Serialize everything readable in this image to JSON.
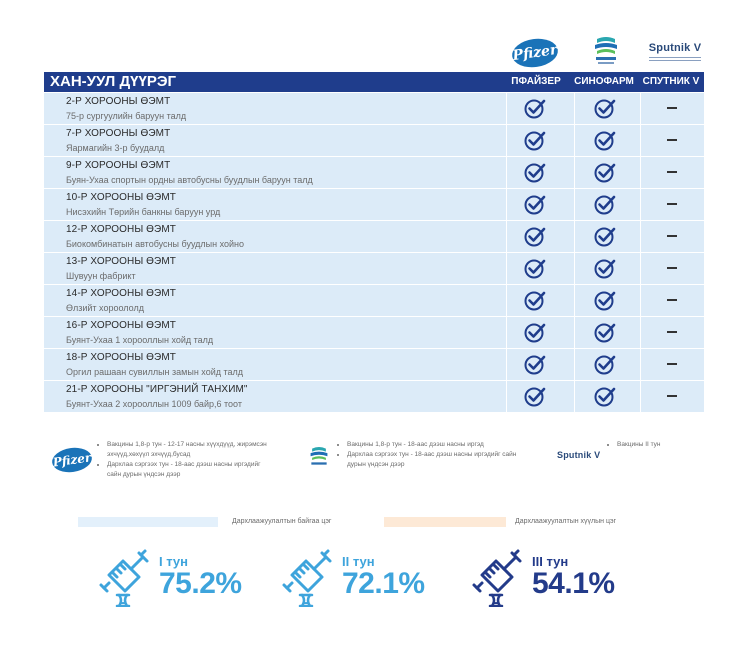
{
  "vaccines": {
    "pfizer_logo_text": "Pfizer",
    "sputnik_logo_text": "Sputnik V"
  },
  "header": {
    "district": "ХАН-УУЛ ДҮҮРЭГ",
    "columns": [
      "ПФАЙЗЕР",
      "СИНОФАРМ",
      "СПУТНИК V"
    ]
  },
  "rows": [
    {
      "name": "2-Р ХОРООНЫ ӨЭМТ",
      "address": "75-р сургуулийн баруун талд",
      "pfizer": true,
      "sinopharm": true,
      "sputnik": false
    },
    {
      "name": "7-Р ХОРООНЫ ӨЭМТ",
      "address": "Яармагийн 3-р буудалд",
      "pfizer": true,
      "sinopharm": true,
      "sputnik": false
    },
    {
      "name": "9-Р ХОРООНЫ ӨЭМТ",
      "address": "Буян-Ухаа спортын ордны автобусны буудлын баруун талд",
      "pfizer": true,
      "sinopharm": true,
      "sputnik": false
    },
    {
      "name": "10-Р ХОРООНЫ ӨЭМТ",
      "address": "Нисэхийн Төрийн банкны баруун урд",
      "pfizer": true,
      "sinopharm": true,
      "sputnik": false
    },
    {
      "name": "12-Р ХОРООНЫ ӨЭМТ",
      "address": "Биокомбинатын автобусны буудлын хойно",
      "pfizer": true,
      "sinopharm": true,
      "sputnik": false
    },
    {
      "name": "13-Р ХОРООНЫ ӨЭМТ",
      "address": "Шувуун фабрикт",
      "pfizer": true,
      "sinopharm": true,
      "sputnik": false
    },
    {
      "name": "14-Р ХОРООНЫ ӨЭМТ",
      "address": "Өлзийт хороололд",
      "pfizer": true,
      "sinopharm": true,
      "sputnik": false
    },
    {
      "name": "16-Р ХОРООНЫ ӨЭМТ",
      "address": "Буянт-Ухаа 1 хорооллын хойд талд",
      "pfizer": true,
      "sinopharm": true,
      "sputnik": false
    },
    {
      "name": "18-Р ХОРООНЫ ӨЭМТ",
      "address": "Оргил рашаан сувиллын замын хойд  талд",
      "pfizer": true,
      "sinopharm": true,
      "sputnik": false
    },
    {
      "name": "21-Р ХОРООНЫ \"ИРГЭНИЙ ТАНХИМ\"",
      "address": "Буянт-Ухаа 2 хорооллын 1009 байр,6 тоот",
      "pfizer": true,
      "sinopharm": true,
      "sputnik": false
    }
  ],
  "notes": {
    "pfizer": [
      "Вакцины 1,8-р тун - 12-17 насны хүүхдүүд, жирэмсэн эхчүүд,хөхүүл эхчүүд,бусад",
      "Дархлаа сэргээх тун - 18-аас дээш насны иргэдийг сайн дурын үндсэн дээр"
    ],
    "sinopharm": [
      "Вакцины 1,8-р тун - 18-аас дээш насны иргэд",
      "Дархлаа сэргээх тун - 18-аас дээш насны иргэдийг сайн дурын үндсэн дээр"
    ],
    "sputnik": [
      "Вакцины II тун"
    ]
  },
  "legend": {
    "available": "Дархлаажуулалтын байгаа цэг",
    "unavailable": "Дархлаажуулалтын хүүлын цэг",
    "available_color": "#e3f0fb",
    "unavailable_color": "#fde9d6"
  },
  "doses": [
    {
      "label": "I тун",
      "percent": "75.2%",
      "color": "#3ea4dc"
    },
    {
      "label": "II тун",
      "percent": "72.1%",
      "color": "#3ea4dc"
    },
    {
      "label": "III тун",
      "percent": "54.1%",
      "color": "#233b8a"
    }
  ],
  "colors": {
    "header_bg": "#1f3d8c",
    "row_bg": "#dcebf8",
    "check": "#1f3d8c"
  }
}
